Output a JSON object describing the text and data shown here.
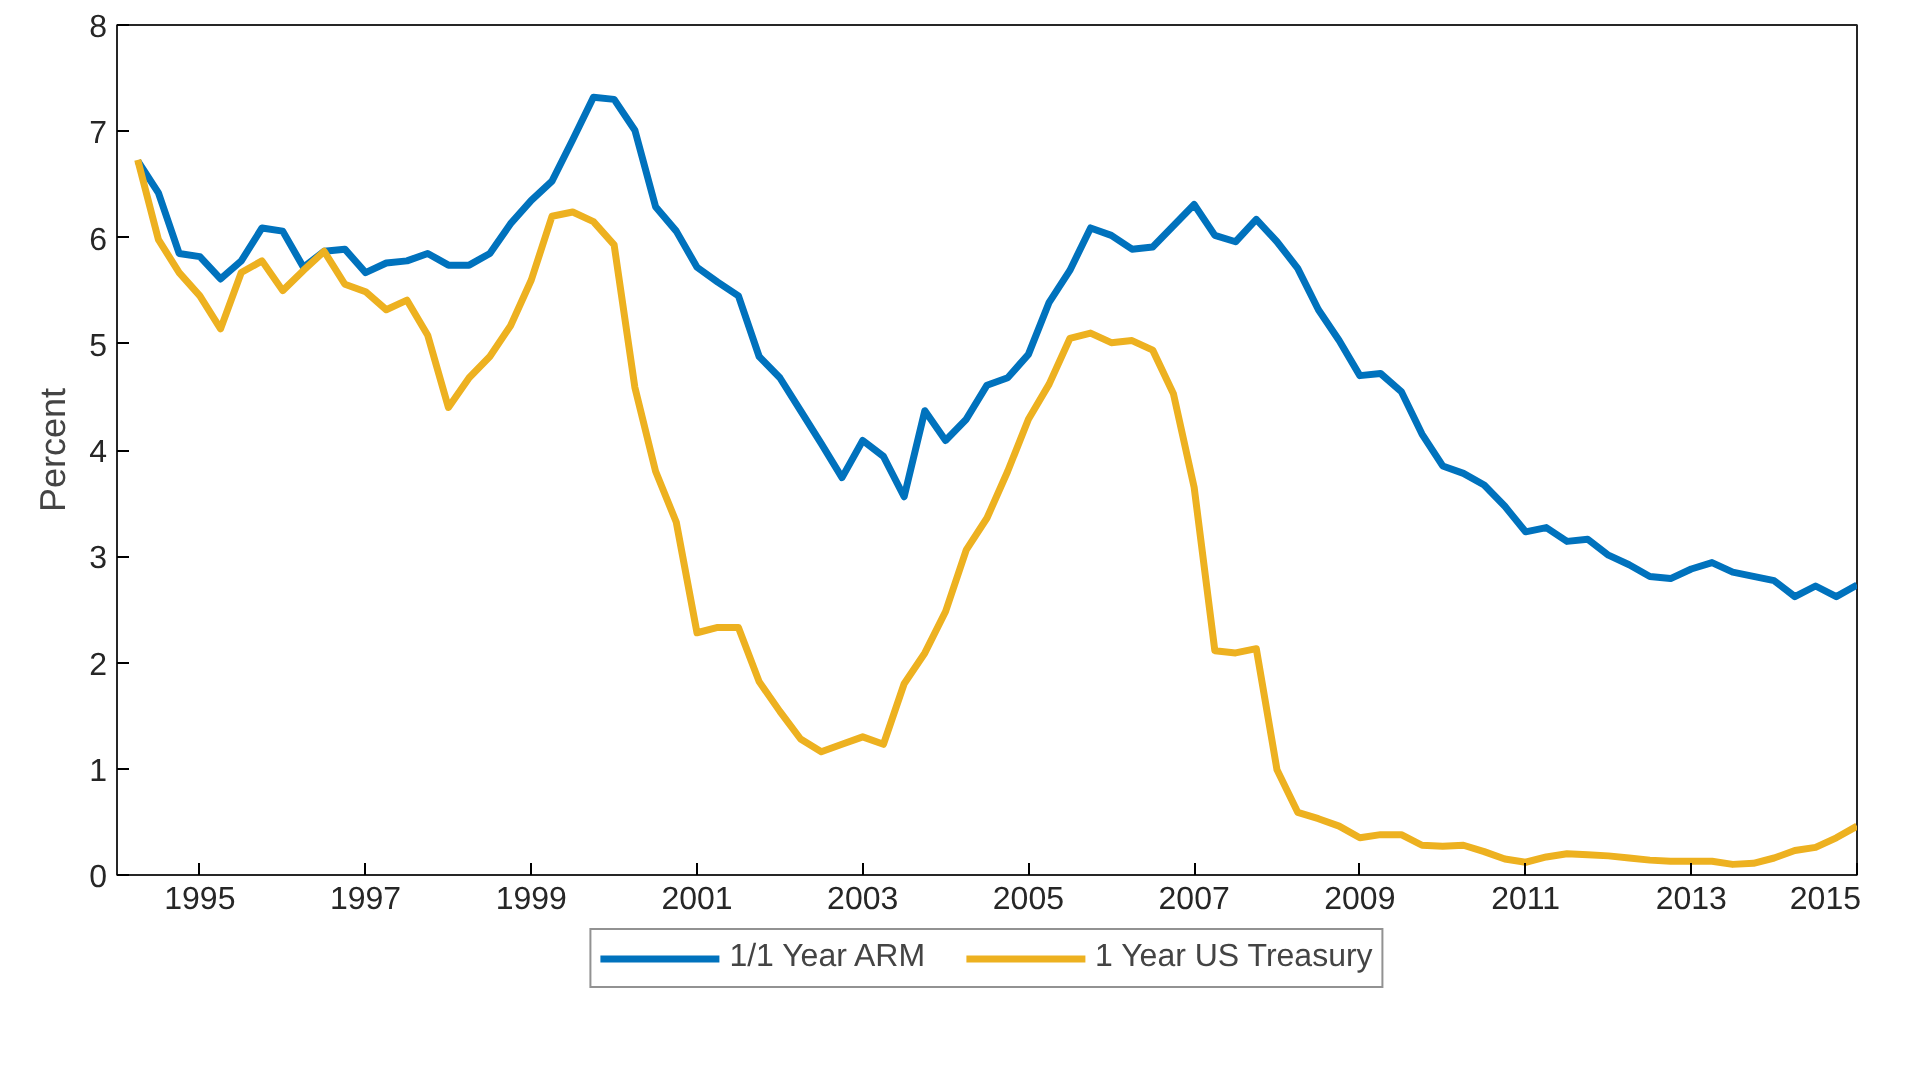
{
  "chart_data": {
    "type": "line",
    "ylabel": "Percent",
    "x": [
      1994.25,
      1994.5,
      1994.75,
      1995.0,
      1995.25,
      1995.5,
      1995.75,
      1996.0,
      1996.25,
      1996.5,
      1996.75,
      1997.0,
      1997.25,
      1997.5,
      1997.75,
      1998.0,
      1998.25,
      1998.5,
      1998.75,
      1999.0,
      1999.25,
      1999.5,
      1999.75,
      2000.0,
      2000.25,
      2000.5,
      2000.75,
      2001.0,
      2001.25,
      2001.5,
      2001.75,
      2002.0,
      2002.25,
      2002.5,
      2002.75,
      2003.0,
      2003.25,
      2003.5,
      2003.75,
      2004.0,
      2004.25,
      2004.5,
      2004.75,
      2005.0,
      2005.25,
      2005.5,
      2005.75,
      2006.0,
      2006.25,
      2006.5,
      2006.75,
      2007.0,
      2007.25,
      2007.5,
      2007.75,
      2008.0,
      2008.25,
      2008.5,
      2008.75,
      2009.0,
      2009.25,
      2009.5,
      2009.75,
      2010.0,
      2010.25,
      2010.5,
      2010.75,
      2011.0,
      2011.25,
      2011.5,
      2011.75,
      2012.0,
      2012.25,
      2012.5,
      2012.75,
      2013.0,
      2013.25,
      2013.5,
      2013.75,
      2014.0,
      2014.25,
      2014.5,
      2014.75,
      2015.0
    ],
    "series": [
      {
        "name": "1/1 Year ARM",
        "color": "#0072bd",
        "values": [
          6.72,
          6.42,
          5.85,
          5.82,
          5.61,
          5.78,
          6.09,
          6.06,
          5.72,
          5.87,
          5.89,
          5.67,
          5.76,
          5.78,
          5.85,
          5.74,
          5.74,
          5.85,
          6.13,
          6.35,
          6.53,
          6.92,
          7.32,
          7.3,
          7.01,
          6.29,
          6.06,
          5.72,
          5.58,
          5.45,
          4.88,
          4.68,
          4.37,
          4.06,
          3.74,
          4.09,
          3.94,
          3.56,
          4.37,
          4.09,
          4.29,
          4.61,
          4.68,
          4.9,
          5.39,
          5.69,
          6.09,
          6.02,
          5.89,
          5.91,
          6.11,
          6.31,
          6.02,
          5.96,
          6.17,
          5.96,
          5.71,
          5.32,
          5.03,
          4.7,
          4.72,
          4.55,
          4.15,
          3.85,
          3.78,
          3.67,
          3.47,
          3.23,
          3.27,
          3.14,
          3.16,
          3.01,
          2.92,
          2.81,
          2.79,
          2.88,
          2.94,
          2.85,
          2.81,
          2.77,
          2.62,
          2.72,
          2.62,
          2.73
        ]
      },
      {
        "name": "1 Year US Treasury",
        "color": "#edb120",
        "values": [
          6.73,
          5.98,
          5.67,
          5.45,
          5.14,
          5.67,
          5.78,
          5.5,
          5.69,
          5.87,
          5.56,
          5.49,
          5.32,
          5.41,
          5.08,
          4.4,
          4.68,
          4.88,
          5.17,
          5.6,
          6.2,
          6.24,
          6.15,
          5.93,
          4.59,
          3.8,
          3.32,
          2.28,
          2.33,
          2.33,
          1.82,
          1.54,
          1.28,
          1.16,
          1.23,
          1.3,
          1.23,
          1.8,
          2.09,
          2.48,
          3.06,
          3.36,
          3.8,
          4.29,
          4.62,
          5.05,
          5.1,
          5.01,
          5.03,
          4.94,
          4.53,
          3.65,
          2.11,
          2.09,
          2.13,
          0.99,
          0.59,
          0.53,
          0.46,
          0.35,
          0.38,
          0.38,
          0.28,
          0.27,
          0.28,
          0.22,
          0.15,
          0.12,
          0.17,
          0.2,
          0.19,
          0.18,
          0.16,
          0.14,
          0.13,
          0.13,
          0.13,
          0.1,
          0.11,
          0.16,
          0.23,
          0.26,
          0.35,
          0.46
        ]
      }
    ],
    "xlim": [
      1994,
      2015
    ],
    "ylim": [
      0,
      8
    ],
    "xticks": [
      1995,
      1997,
      1999,
      2001,
      2003,
      2005,
      2007,
      2009,
      2011,
      2013,
      2015
    ],
    "yticks": [
      0,
      1,
      2,
      3,
      4,
      5,
      6,
      7,
      8
    ],
    "grid": false,
    "legend": "bottom",
    "line_style": "solid",
    "marker": "none"
  }
}
